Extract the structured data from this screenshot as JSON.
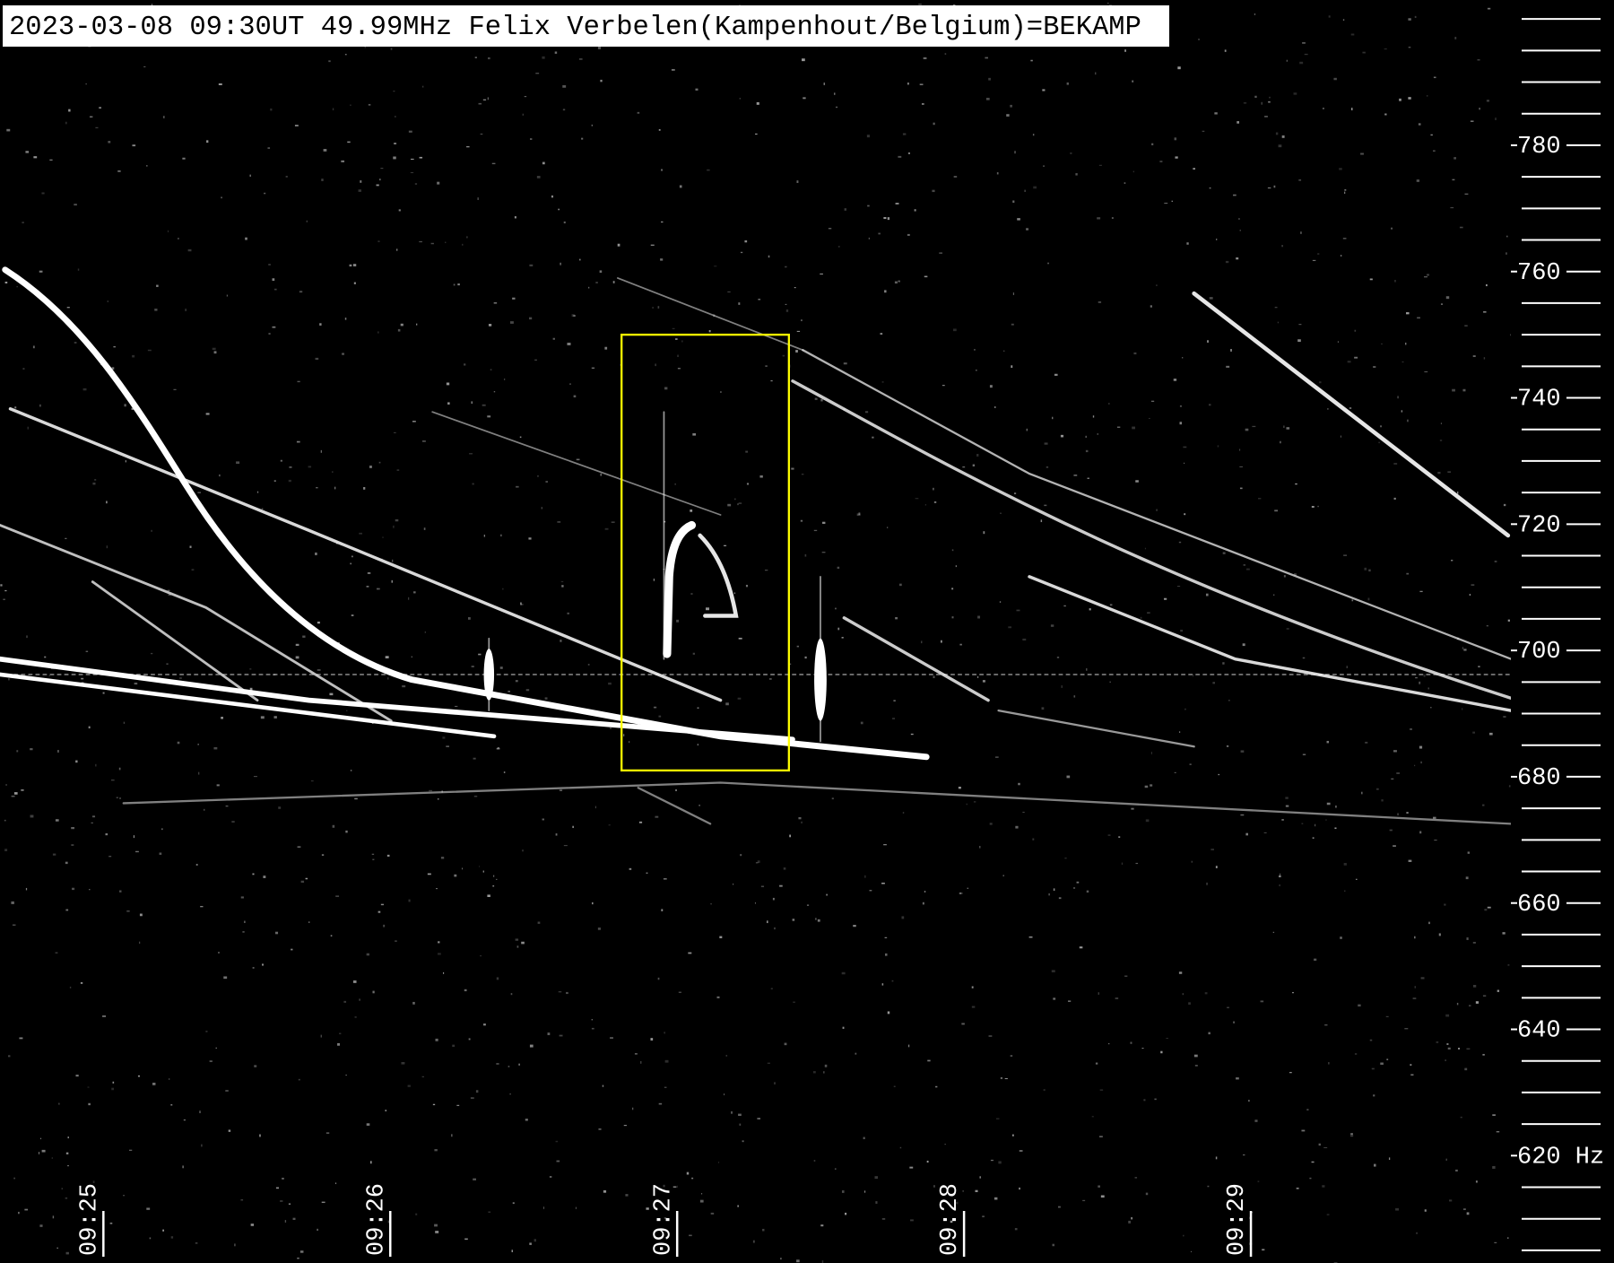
{
  "chart_data": {
    "type": "spectrogram",
    "title": "2023-03-08 09:30UT 49.99MHz Felix Verbelen(Kampenhout/Belgium)=BEKAMP",
    "xlim": [
      "09:24:41",
      "09:29:57"
    ],
    "xticks": [
      "09:25",
      "09:26",
      "09:27",
      "09:28",
      "09:29"
    ],
    "ylim": [
      603,
      803
    ],
    "yticks": [
      {
        "value": 620,
        "label": "620 Hz"
      },
      640,
      660,
      680,
      700,
      720,
      740,
      760,
      780
    ],
    "yminorticks": [
      605,
      610,
      615,
      625,
      630,
      635,
      645,
      650,
      655,
      665,
      670,
      675,
      685,
      690,
      695,
      705,
      710,
      715,
      725,
      730,
      735,
      745,
      750,
      755,
      765,
      770,
      775,
      785,
      790,
      795,
      800
    ],
    "highlight": {
      "xlim": [
        "09:26:51",
        "09:27:26"
      ],
      "ylim": [
        681,
        750
      ],
      "color": "#ffff00"
    },
    "background": "#000000"
  }
}
